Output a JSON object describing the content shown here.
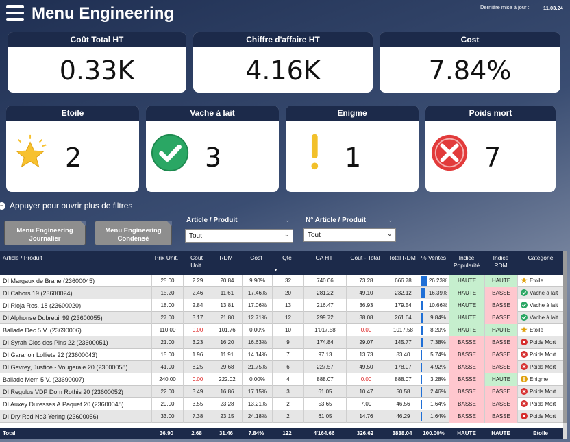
{
  "header": {
    "title": "Menu Engineering",
    "update_label": "Dernière mise à jour :",
    "update_date": "11.03.24"
  },
  "kpis": [
    {
      "label": "Coût Total HT",
      "value": "0.33K"
    },
    {
      "label": "Chiffre d'affaire HT",
      "value": "4.16K"
    },
    {
      "label": "Cost",
      "value": "7.84%"
    }
  ],
  "categories": [
    {
      "label": "Etoile",
      "count": "2",
      "icon": "star-icon"
    },
    {
      "label": "Vache à lait",
      "count": "3",
      "icon": "check-circle-icon"
    },
    {
      "label": "Enigme",
      "count": "1",
      "icon": "exclamation-icon"
    },
    {
      "label": "Poids mort",
      "count": "7",
      "icon": "x-circle-icon"
    }
  ],
  "filters": {
    "toggle_label": "Appuyer pour ouvrir plus de filtres",
    "btn_journalier": "Menu Engineering Journalier",
    "btn_condense": "Menu Engineering Condensé",
    "article_label": "Article / Produit",
    "article_value": "Tout",
    "numero_label": "N° Article / Produit",
    "numero_value": "Tout"
  },
  "table": {
    "headers": [
      "Article / Produit",
      "Prix Unit.",
      "Coût Unit.",
      "RDM",
      "Cost",
      "Qté",
      "CA HT",
      "Coût - Total",
      "Total RDM",
      "% Ventes",
      "Indice Popularité",
      "Indice RDM",
      "Catégorie"
    ],
    "rows": [
      {
        "name": "DI Margaux de Brane (23600045)",
        "prix": "25.00",
        "cout": "2.29",
        "rdm": "20.84",
        "cost": "9.90%",
        "qte": "32",
        "ca": "740.06",
        "ct": "73.28",
        "trdm": "666.78",
        "pv": "26.23%",
        "pv_frac": 1.0,
        "ip": "HAUTE",
        "ir": "HAUTE",
        "cat": "Etoile"
      },
      {
        "name": "DI Cahors 19 (23600024)",
        "prix": "15.20",
        "cout": "2.46",
        "rdm": "11.61",
        "cost": "17.46%",
        "qte": "20",
        "ca": "281.22",
        "ct": "49.10",
        "trdm": "232.12",
        "pv": "16.39%",
        "pv_frac": 0.62,
        "ip": "HAUTE",
        "ir": "BASSE",
        "cat": "Vache à lait"
      },
      {
        "name": "DI Rioja Res. 18 (23600020)",
        "prix": "18.00",
        "cout": "2.84",
        "rdm": "13.81",
        "cost": "17.06%",
        "qte": "13",
        "ca": "216.47",
        "ct": "36.93",
        "trdm": "179.54",
        "pv": "10.66%",
        "pv_frac": 0.41,
        "ip": "HAUTE",
        "ir": "BASSE",
        "cat": "Vache à lait"
      },
      {
        "name": "DI Alphonse Dubreuil 99 (23600055)",
        "prix": "27.00",
        "cout": "3.17",
        "rdm": "21.80",
        "cost": "12.71%",
        "qte": "12",
        "ca": "299.72",
        "ct": "38.08",
        "trdm": "261.64",
        "pv": "9.84%",
        "pv_frac": 0.38,
        "ip": "HAUTE",
        "ir": "BASSE",
        "cat": "Vache à lait"
      },
      {
        "name": "Ballade Dec 5 V. (23690006)",
        "prix": "110.00",
        "cout": "0.00",
        "rdm": "101.76",
        "cost": "0.00%",
        "qte": "10",
        "ca": "1'017.58",
        "ct": "0.00",
        "trdm": "1017.58",
        "pv": "8.20%",
        "pv_frac": 0.31,
        "ip": "HAUTE",
        "ir": "HAUTE",
        "cat": "Etoile"
      },
      {
        "name": "DI Syrah Clos des Pins 22 (23600051)",
        "prix": "21.00",
        "cout": "3.23",
        "rdm": "16.20",
        "cost": "16.63%",
        "qte": "9",
        "ca": "174.84",
        "ct": "29.07",
        "trdm": "145.77",
        "pv": "7.38%",
        "pv_frac": 0.28,
        "ip": "BASSE",
        "ir": "BASSE",
        "cat": "Poids Mort"
      },
      {
        "name": "DI Garanoir Lolliets 22 (23600043)",
        "prix": "15.00",
        "cout": "1.96",
        "rdm": "11.91",
        "cost": "14.14%",
        "qte": "7",
        "ca": "97.13",
        "ct": "13.73",
        "trdm": "83.40",
        "pv": "5.74%",
        "pv_frac": 0.22,
        "ip": "BASSE",
        "ir": "BASSE",
        "cat": "Poids Mort"
      },
      {
        "name": "DI Gevrey, Justice - Vougeraie 20 (23600058)",
        "prix": "41.00",
        "cout": "8.25",
        "rdm": "29.68",
        "cost": "21.75%",
        "qte": "6",
        "ca": "227.57",
        "ct": "49.50",
        "trdm": "178.07",
        "pv": "4.92%",
        "pv_frac": 0.19,
        "ip": "BASSE",
        "ir": "BASSE",
        "cat": "Poids Mort"
      },
      {
        "name": "Ballade Mem 5 V. (23690007)",
        "prix": "240.00",
        "cout": "0.00",
        "rdm": "222.02",
        "cost": "0.00%",
        "qte": "4",
        "ca": "888.07",
        "ct": "0.00",
        "trdm": "888.07",
        "pv": "3.28%",
        "pv_frac": 0.13,
        "ip": "BASSE",
        "ir": "HAUTE",
        "cat": "Enigme"
      },
      {
        "name": "DI Regulus VDP Dom Rothis 20 (23600052)",
        "prix": "22.00",
        "cout": "3.49",
        "rdm": "16.86",
        "cost": "17.15%",
        "qte": "3",
        "ca": "61.05",
        "ct": "10.47",
        "trdm": "50.58",
        "pv": "2.46%",
        "pv_frac": 0.09,
        "ip": "BASSE",
        "ir": "BASSE",
        "cat": "Poids Mort"
      },
      {
        "name": "DI Auxey Duresses A.Paquet 20 (23600048)",
        "prix": "29.00",
        "cout": "3.55",
        "rdm": "23.28",
        "cost": "13.21%",
        "qte": "2",
        "ca": "53.65",
        "ct": "7.09",
        "trdm": "46.56",
        "pv": "1.64%",
        "pv_frac": 0.06,
        "ip": "BASSE",
        "ir": "BASSE",
        "cat": "Poids Mort"
      },
      {
        "name": "DI Dry Red No3 Yering (23600056)",
        "prix": "33.00",
        "cout": "7.38",
        "rdm": "23.15",
        "cost": "24.18%",
        "qte": "2",
        "ca": "61.05",
        "ct": "14.76",
        "trdm": "46.29",
        "pv": "1.64%",
        "pv_frac": 0.06,
        "ip": "BASSE",
        "ir": "BASSE",
        "cat": "Poids Mort"
      }
    ],
    "total": {
      "label": "Total",
      "prix": "36.90",
      "cout": "2.68",
      "rdm": "31.46",
      "cost": "7.84%",
      "qte": "122",
      "ca": "4'164.66",
      "ct": "326.62",
      "trdm": "3838.04",
      "pv": "100.00%",
      "ip": "HAUTE",
      "ir": "HAUTE",
      "cat": "Etoile"
    }
  },
  "colors": {
    "header_navy": "#1c2a4a",
    "haute": "#c6efce",
    "basse": "#ffc7ce",
    "bar_blue": "#1f6fd6"
  }
}
